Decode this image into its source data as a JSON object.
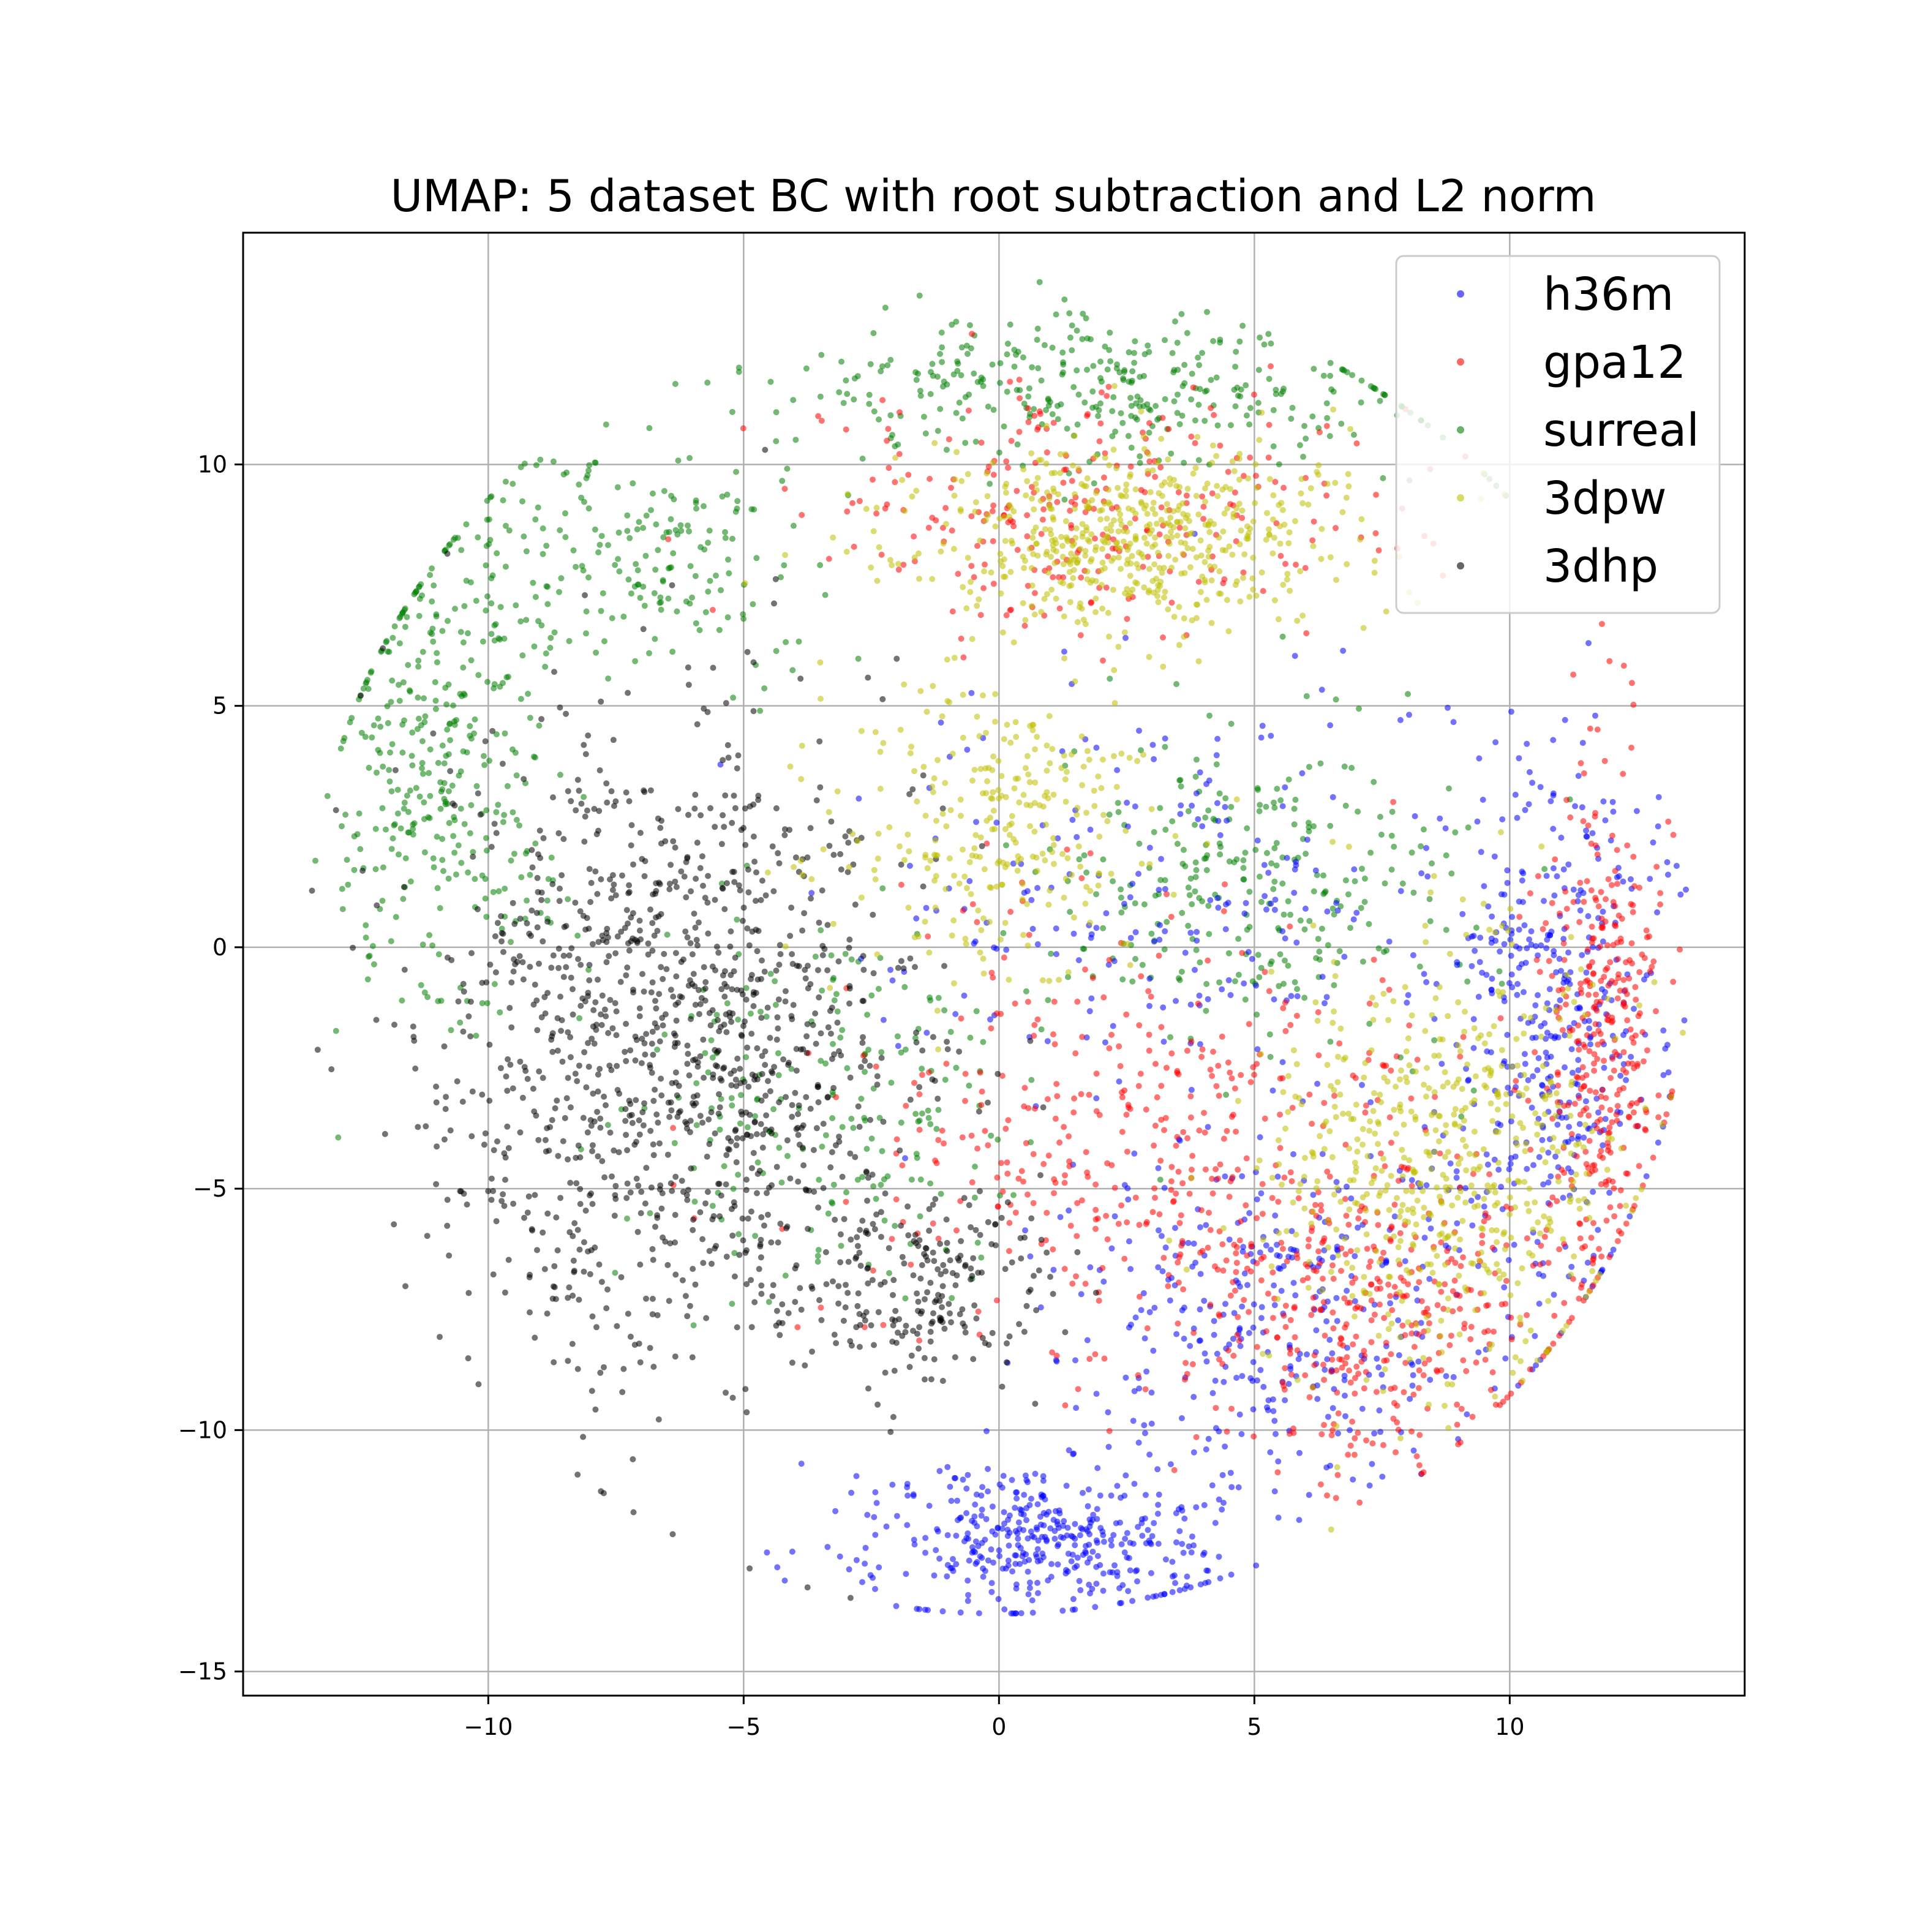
{
  "chart_data": {
    "type": "scatter",
    "title": "UMAP: 5 dataset BC with root subtraction and L2 norm",
    "xlabel": "",
    "ylabel": "",
    "xlim": [
      -14.8,
      14.6
    ],
    "ylim": [
      -15.5,
      14.8
    ],
    "xticks": [
      -10,
      -5,
      0,
      5,
      10
    ],
    "yticks": [
      -15,
      -10,
      -5,
      0,
      5,
      10
    ],
    "xtick_labels": [
      "−10",
      "−5",
      "0",
      "5",
      "10"
    ],
    "ytick_labels": [
      "−15",
      "−10",
      "−5",
      "0",
      "5",
      "10"
    ],
    "grid": true,
    "legend_position": "top-right",
    "series": [
      {
        "name": "h36m",
        "color": "#0000ff",
        "regions": [
          {
            "cx": 1.0,
            "cy": -12.3,
            "rx": 3.6,
            "ry": 1.8,
            "weight": 0.3
          },
          {
            "cx": 10.8,
            "cy": -1.5,
            "rx": 2.2,
            "ry": 5.5,
            "weight": 0.3
          },
          {
            "cx": 5.5,
            "cy": -7.5,
            "rx": 4.5,
            "ry": 3.5,
            "weight": 0.25
          },
          {
            "cx": 3.0,
            "cy": 1.0,
            "rx": 5.5,
            "ry": 4.0,
            "weight": 0.15
          }
        ]
      },
      {
        "name": "gpa12",
        "color": "#ff0000",
        "regions": [
          {
            "cx": 11.8,
            "cy": -2.0,
            "rx": 1.2,
            "ry": 5.5,
            "weight": 0.25
          },
          {
            "cx": 7.5,
            "cy": -7.5,
            "rx": 3.5,
            "ry": 3.5,
            "weight": 0.25
          },
          {
            "cx": 2.0,
            "cy": 9.0,
            "rx": 5.5,
            "ry": 2.5,
            "weight": 0.2
          },
          {
            "cx": 3.0,
            "cy": -4.0,
            "rx": 6.0,
            "ry": 5.0,
            "weight": 0.3
          }
        ]
      },
      {
        "name": "surreal",
        "color": "#008000",
        "regions": [
          {
            "cx": -11.0,
            "cy": 3.5,
            "rx": 2.2,
            "ry": 5.0,
            "weight": 0.25
          },
          {
            "cx": 2.0,
            "cy": 11.6,
            "rx": 6.5,
            "ry": 1.6,
            "weight": 0.25
          },
          {
            "cx": -7.0,
            "cy": 8.0,
            "rx": 3.5,
            "ry": 2.5,
            "weight": 0.15
          },
          {
            "cx": 5.0,
            "cy": 1.5,
            "rx": 4.0,
            "ry": 3.5,
            "weight": 0.2
          },
          {
            "cx": -3.5,
            "cy": -3.0,
            "rx": 4.0,
            "ry": 4.0,
            "weight": 0.15
          }
        ]
      },
      {
        "name": "3dpw",
        "color": "#bfbf00",
        "regions": [
          {
            "cx": 2.5,
            "cy": 8.5,
            "rx": 4.5,
            "ry": 2.0,
            "weight": 0.4
          },
          {
            "cx": 8.5,
            "cy": -4.5,
            "rx": 3.5,
            "ry": 4.5,
            "weight": 0.4
          },
          {
            "cx": 0.0,
            "cy": 2.5,
            "rx": 3.0,
            "ry": 3.0,
            "weight": 0.2
          }
        ]
      },
      {
        "name": "3dhp",
        "color": "#000000",
        "regions": [
          {
            "cx": -6.5,
            "cy": -2.0,
            "rx": 4.8,
            "ry": 6.8,
            "weight": 0.85
          },
          {
            "cx": -1.5,
            "cy": -7.0,
            "rx": 2.5,
            "ry": 2.0,
            "weight": 0.15
          }
        ]
      }
    ]
  }
}
